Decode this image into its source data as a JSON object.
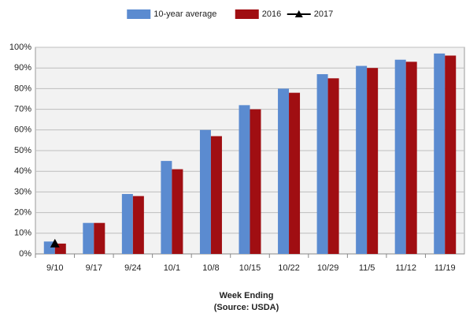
{
  "chart_data": {
    "type": "bar",
    "categories": [
      "9/10",
      "9/17",
      "9/24",
      "10/1",
      "10/8",
      "10/15",
      "10/22",
      "10/29",
      "11/5",
      "11/12",
      "11/19"
    ],
    "series": [
      {
        "name": "10-year average",
        "type": "bar",
        "color": "#5b8bd0",
        "values": [
          6,
          15,
          29,
          45,
          60,
          72,
          80,
          87,
          91,
          94,
          97
        ]
      },
      {
        "name": "2016",
        "type": "bar",
        "color": "#a00e12",
        "values": [
          5,
          15,
          28,
          41,
          57,
          70,
          78,
          85,
          90,
          93,
          96
        ]
      },
      {
        "name": "2017",
        "type": "line",
        "color": "#000000",
        "values": [
          5,
          null,
          null,
          null,
          null,
          null,
          null,
          null,
          null,
          null,
          null
        ]
      }
    ],
    "ylim": [
      0,
      100
    ],
    "yticks": [
      {
        "value": 0,
        "label": "0%"
      },
      {
        "value": 10,
        "label": "10%"
      },
      {
        "value": 20,
        "label": "20%"
      },
      {
        "value": 30,
        "label": "30%"
      },
      {
        "value": 40,
        "label": "40%"
      },
      {
        "value": 50,
        "label": "50%"
      },
      {
        "value": 60,
        "label": "60%"
      },
      {
        "value": 70,
        "label": "70%"
      },
      {
        "value": 80,
        "label": "80%"
      },
      {
        "value": 90,
        "label": "90%"
      },
      {
        "value": 100,
        "label": "100%"
      }
    ],
    "xlabel": [
      "Week Ending",
      "(Source: USDA)"
    ],
    "grid": true,
    "legend": "top"
  }
}
